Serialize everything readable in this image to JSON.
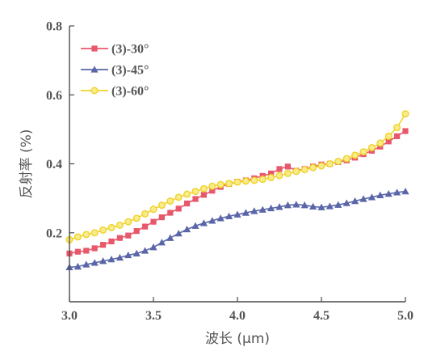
{
  "chart_data": {
    "type": "line",
    "title": "",
    "xlabel": "波长 (μm)",
    "ylabel": "反射率 (%)",
    "xlim": [
      3.0,
      5.0
    ],
    "ylim": [
      0.0,
      0.8
    ],
    "xticks": [
      3.0,
      3.5,
      4.0,
      4.5,
      5.0
    ],
    "xtick_labels": [
      "3.0",
      "3.5",
      "4.0",
      "4.5",
      "5.0"
    ],
    "yticks": [
      0.2,
      0.4,
      0.6,
      0.8
    ],
    "ytick_labels": [
      "0.2",
      "0.4",
      "0.6",
      "0.8"
    ],
    "legend_position": "top-left",
    "grid": false,
    "x": [
      3.0,
      3.05,
      3.1,
      3.15,
      3.2,
      3.25,
      3.3,
      3.35,
      3.4,
      3.45,
      3.5,
      3.55,
      3.6,
      3.65,
      3.7,
      3.75,
      3.8,
      3.85,
      3.9,
      3.95,
      4.0,
      4.05,
      4.1,
      4.15,
      4.2,
      4.25,
      4.3,
      4.35,
      4.4,
      4.45,
      4.5,
      4.55,
      4.6,
      4.65,
      4.7,
      4.75,
      4.8,
      4.85,
      4.9,
      4.95,
      5.0
    ],
    "series": [
      {
        "name": "(3)-30°",
        "color": "#e8586b",
        "marker": "square",
        "values": [
          0.14,
          0.145,
          0.148,
          0.155,
          0.165,
          0.175,
          0.185,
          0.192,
          0.205,
          0.218,
          0.232,
          0.245,
          0.258,
          0.27,
          0.285,
          0.298,
          0.31,
          0.322,
          0.333,
          0.342,
          0.348,
          0.352,
          0.358,
          0.365,
          0.372,
          0.385,
          0.392,
          0.38,
          0.385,
          0.392,
          0.398,
          0.4,
          0.405,
          0.41,
          0.418,
          0.428,
          0.438,
          0.45,
          0.465,
          0.48,
          0.495
        ]
      },
      {
        "name": "(3)-45°",
        "color": "#5a66a8",
        "marker": "triangle",
        "values": [
          0.1,
          0.102,
          0.108,
          0.113,
          0.118,
          0.123,
          0.128,
          0.135,
          0.14,
          0.148,
          0.158,
          0.172,
          0.185,
          0.198,
          0.21,
          0.22,
          0.228,
          0.235,
          0.242,
          0.248,
          0.253,
          0.258,
          0.263,
          0.267,
          0.271,
          0.275,
          0.28,
          0.282,
          0.28,
          0.276,
          0.274,
          0.277,
          0.281,
          0.286,
          0.292,
          0.298,
          0.303,
          0.309,
          0.313,
          0.317,
          0.32
        ]
      },
      {
        "name": "(3)-60°",
        "color": "#f0d22a",
        "marker": "circle",
        "values": [
          0.18,
          0.188,
          0.195,
          0.2,
          0.208,
          0.215,
          0.222,
          0.232,
          0.242,
          0.255,
          0.268,
          0.28,
          0.292,
          0.303,
          0.312,
          0.32,
          0.328,
          0.335,
          0.34,
          0.343,
          0.347,
          0.35,
          0.352,
          0.355,
          0.36,
          0.366,
          0.372,
          0.378,
          0.383,
          0.389,
          0.394,
          0.4,
          0.407,
          0.415,
          0.425,
          0.435,
          0.447,
          0.46,
          0.48,
          0.505,
          0.545
        ]
      }
    ]
  }
}
